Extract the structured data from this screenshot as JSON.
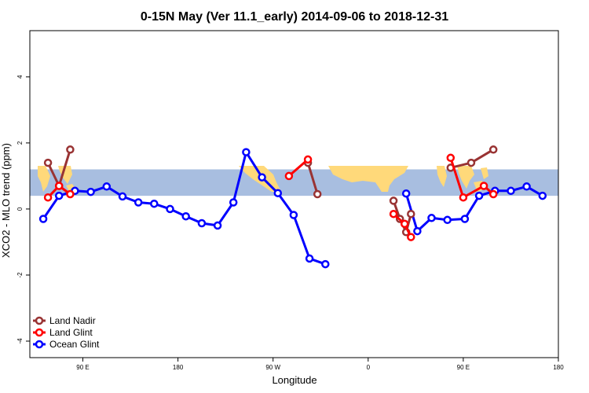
{
  "chart_data": {
    "type": "line",
    "title": "0-15N May (Ver 11.1_early)   2014-09-06 to 2018-12-31",
    "xlabel": "Longitude",
    "ylabel": "XCO2 - MLO trend (ppm)",
    "xlim": [
      -100,
      180
    ],
    "ylim": [
      -4.5,
      5.4
    ],
    "x_ticks": [
      {
        "value": -90,
        "label": "90 E"
      },
      {
        "value": -30,
        "label": "180"
      },
      {
        "value": 30,
        "label": "90 W"
      },
      {
        "value": 90,
        "label": "0"
      },
      {
        "value": 150,
        "label": "90 E"
      },
      {
        "value": 210,
        "label": "180"
      }
    ],
    "y_ticks": [
      -4,
      -2,
      0,
      2,
      4
    ],
    "grid": false,
    "legend_position": "bottom-left",
    "background_band": {
      "y": [
        0.4,
        1.2
      ],
      "color": "#a8bee0",
      "land_color": "#ffd97a"
    },
    "series": [
      {
        "name": "Land Nadir",
        "color": "#993333",
        "segments": [
          [
            [
              -112,
              1.4
            ],
            [
              -105,
              0.7
            ],
            [
              -98,
              1.8
            ]
          ],
          [
            [
              52,
              1.4
            ],
            [
              58,
              0.45
            ]
          ],
          [
            [
              106,
              0.25
            ],
            [
              110,
              -0.3
            ],
            [
              114,
              -0.7
            ],
            [
              117,
              -0.15
            ]
          ],
          [
            [
              142,
              1.25
            ],
            [
              155,
              1.4
            ],
            [
              169,
              1.8
            ]
          ]
        ]
      },
      {
        "name": "Land Glint",
        "color": "#ff0000",
        "segments": [
          [
            [
              -112,
              0.35
            ],
            [
              -105,
              0.7
            ],
            [
              -98,
              0.45
            ]
          ],
          [
            [
              40,
              1.0
            ],
            [
              52,
              1.5
            ]
          ],
          [
            [
              106,
              -0.15
            ],
            [
              113,
              -0.45
            ],
            [
              117,
              -0.85
            ]
          ],
          [
            [
              142,
              1.55
            ],
            [
              150,
              0.35
            ],
            [
              163,
              0.7
            ],
            [
              169,
              0.45
            ]
          ]
        ]
      },
      {
        "name": "Ocean Glint",
        "color": "#0000ff",
        "segments": [
          [
            [
              -115,
              -0.3
            ],
            [
              -105,
              0.4
            ],
            [
              -95,
              0.55
            ],
            [
              -85,
              0.52
            ],
            [
              -75,
              0.68
            ],
            [
              -65,
              0.38
            ],
            [
              -55,
              0.2
            ],
            [
              -45,
              0.16
            ],
            [
              -35,
              0.0
            ],
            [
              -25,
              -0.22
            ],
            [
              -15,
              -0.43
            ],
            [
              -5,
              -0.5
            ],
            [
              5,
              0.2
            ],
            [
              13,
              1.72
            ],
            [
              23,
              0.96
            ],
            [
              33,
              0.48
            ],
            [
              43,
              -0.18
            ],
            [
              53,
              -1.5
            ],
            [
              63,
              -1.67
            ]
          ],
          [
            [
              114,
              0.47
            ],
            [
              121,
              -0.67
            ],
            [
              130,
              -0.27
            ],
            [
              140,
              -0.33
            ],
            [
              151,
              -0.3
            ],
            [
              160,
              0.4
            ],
            [
              170,
              0.55
            ],
            [
              180,
              0.55
            ],
            [
              190,
              0.68
            ],
            [
              200,
              0.4
            ]
          ]
        ]
      }
    ]
  }
}
